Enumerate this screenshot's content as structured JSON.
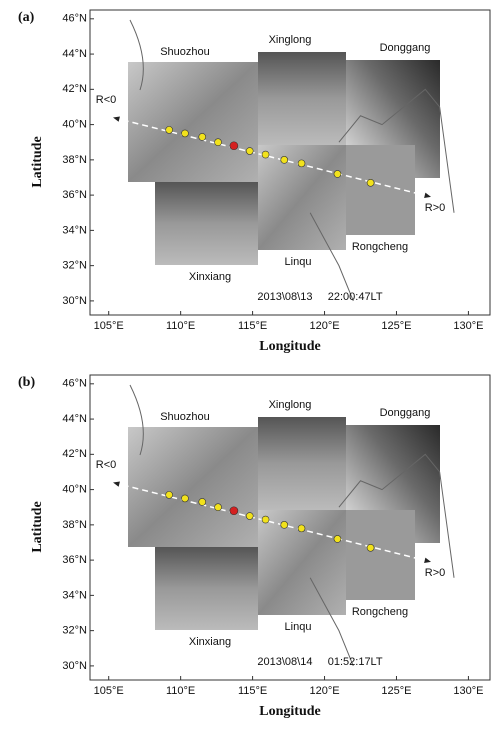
{
  "chart_data": [
    {
      "type": "map",
      "label": "(a)",
      "ylabel": "Latitude",
      "xlabel": "Longitude",
      "xlim": [
        103.7,
        131.5
      ],
      "ylim": [
        29.2,
        46.5
      ],
      "xticks": [
        {
          "value": 105,
          "label": "105°E"
        },
        {
          "value": 110,
          "label": "110°E"
        },
        {
          "value": 115,
          "label": "115°E"
        },
        {
          "value": 120,
          "label": "120°E"
        },
        {
          "value": 125,
          "label": "125°E"
        },
        {
          "value": 130,
          "label": "130°E"
        }
      ],
      "yticks": [
        {
          "value": 30,
          "label": "30°N"
        },
        {
          "value": 32,
          "label": "32°N"
        },
        {
          "value": 34,
          "label": "34°N"
        },
        {
          "value": 36,
          "label": "36°N"
        },
        {
          "value": 38,
          "label": "38°N"
        },
        {
          "value": 40,
          "label": "40°N"
        },
        {
          "value": 42,
          "label": "42°N"
        },
        {
          "value": 44,
          "label": "44°N"
        },
        {
          "value": 46,
          "label": "46°N"
        }
      ],
      "points": {
        "color": "#f2e21c",
        "x": [
          109.2,
          110.3,
          111.5,
          112.6,
          114.8,
          115.9,
          117.2,
          118.4,
          120.9,
          123.2
        ],
        "y": [
          39.7,
          39.5,
          39.3,
          39.0,
          38.5,
          38.3,
          38.0,
          37.8,
          37.2,
          36.7
        ]
      },
      "center": {
        "color": "#d42020",
        "x": 113.7,
        "y": 38.8
      },
      "track": {
        "x": [
          105.3,
          127.4
        ],
        "y": [
          40.4,
          35.9
        ]
      },
      "annotations": [
        "Shuozhou",
        "Xinglong",
        "Donggang",
        "Xinxiang",
        "Linqu",
        "Rongcheng",
        "R<0",
        "R>0",
        "2013\\08\\13     22:00:47LT"
      ]
    },
    {
      "type": "map",
      "label": "(b)",
      "ylabel": "Latitude",
      "xlabel": "Longitude",
      "xlim": [
        103.7,
        131.5
      ],
      "ylim": [
        29.2,
        46.5
      ],
      "xticks": [
        {
          "value": 105,
          "label": "105°E"
        },
        {
          "value": 110,
          "label": "110°E"
        },
        {
          "value": 115,
          "label": "115°E"
        },
        {
          "value": 120,
          "label": "120°E"
        },
        {
          "value": 125,
          "label": "125°E"
        },
        {
          "value": 130,
          "label": "130°E"
        }
      ],
      "yticks": [
        {
          "value": 30,
          "label": "30°N"
        },
        {
          "value": 32,
          "label": "32°N"
        },
        {
          "value": 34,
          "label": "34°N"
        },
        {
          "value": 36,
          "label": "36°N"
        },
        {
          "value": 38,
          "label": "38°N"
        },
        {
          "value": 40,
          "label": "40°N"
        },
        {
          "value": 42,
          "label": "42°N"
        },
        {
          "value": 44,
          "label": "44°N"
        },
        {
          "value": 46,
          "label": "46°N"
        }
      ],
      "points": {
        "color": "#f2e21c",
        "x": [
          109.2,
          110.3,
          111.5,
          112.6,
          114.8,
          115.9,
          117.2,
          118.4,
          120.9,
          123.2
        ],
        "y": [
          39.7,
          39.5,
          39.3,
          39.0,
          38.5,
          38.3,
          38.0,
          37.8,
          37.2,
          36.7
        ]
      },
      "center": {
        "color": "#d42020",
        "x": 113.7,
        "y": 38.8
      },
      "track": {
        "x": [
          105.3,
          127.4
        ],
        "y": [
          40.4,
          35.9
        ]
      },
      "annotations": [
        "Shuozhou",
        "Xinglong",
        "Donggang",
        "Xinxiang",
        "Linqu",
        "Rongcheng",
        "R<0",
        "R>0",
        "2013\\08\\14     01:52:17LT"
      ]
    }
  ]
}
